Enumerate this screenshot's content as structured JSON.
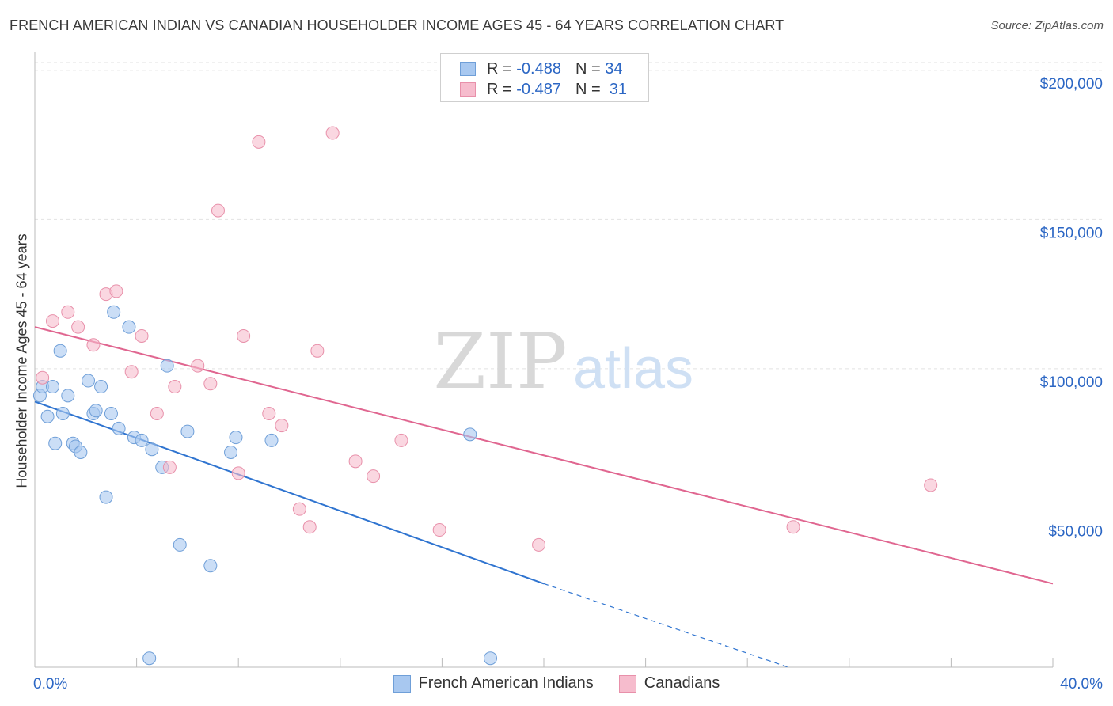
{
  "title": "FRENCH AMERICAN INDIAN VS CANADIAN HOUSEHOLDER INCOME AGES 45 - 64 YEARS CORRELATION CHART",
  "source": "Source: ZipAtlas.com",
  "watermark": {
    "zip": "ZIP",
    "atlas": "atlas"
  },
  "legend": {
    "rows": [
      {
        "r_label": "R =",
        "r_value": "-0.488",
        "n_label": "N =",
        "n_value": "34"
      },
      {
        "r_label": "R =",
        "r_value": "-0.487",
        "n_label": "N =",
        "n_value": "31"
      }
    ]
  },
  "colors": {
    "blue": "#a8c8f0",
    "blue_stroke": "#6f9fd8",
    "blue_line": "#2f74d0",
    "pink": "#f6bccd",
    "pink_stroke": "#e890aa",
    "pink_line": "#e06690",
    "axis_text": "#2b66c4"
  },
  "chart_data": {
    "type": "scatter",
    "title": "FRENCH AMERICAN INDIAN VS CANADIAN HOUSEHOLDER INCOME AGES 45 - 64 YEARS CORRELATION CHART",
    "xlabel": "",
    "ylabel": "Householder Income Ages 45 - 64 years",
    "xlim": [
      0,
      40
    ],
    "ylim": [
      0,
      205000
    ],
    "x_tick_labels": [
      "0.0%",
      "40.0%"
    ],
    "y_ticks": [
      50000,
      100000,
      150000,
      200000
    ],
    "y_tick_labels": [
      "$50,000",
      "$100,000",
      "$150,000",
      "$200,000"
    ],
    "grid": true,
    "legend_position": "top-center",
    "series": [
      {
        "name": "French American Indians",
        "color": "#a8c8f0",
        "points": [
          [
            0.2,
            91000
          ],
          [
            0.3,
            94000
          ],
          [
            0.5,
            84000
          ],
          [
            0.7,
            94000
          ],
          [
            0.8,
            75000
          ],
          [
            1.0,
            106000
          ],
          [
            1.1,
            85000
          ],
          [
            1.3,
            91000
          ],
          [
            1.5,
            75000
          ],
          [
            1.6,
            74000
          ],
          [
            1.8,
            72000
          ],
          [
            2.1,
            96000
          ],
          [
            2.3,
            85000
          ],
          [
            2.4,
            86000
          ],
          [
            2.6,
            94000
          ],
          [
            2.8,
            57000
          ],
          [
            3.0,
            85000
          ],
          [
            3.1,
            119000
          ],
          [
            3.3,
            80000
          ],
          [
            3.7,
            114000
          ],
          [
            3.9,
            77000
          ],
          [
            4.2,
            76000
          ],
          [
            4.5,
            3000
          ],
          [
            4.6,
            73000
          ],
          [
            5.0,
            67000
          ],
          [
            5.2,
            101000
          ],
          [
            5.7,
            41000
          ],
          [
            6.0,
            79000
          ],
          [
            6.9,
            34000
          ],
          [
            7.7,
            72000
          ],
          [
            7.9,
            77000
          ],
          [
            9.3,
            76000
          ],
          [
            17.1,
            78000
          ],
          [
            17.9,
            3000
          ]
        ],
        "trend": {
          "x0": 0,
          "y0": 89000,
          "x1": 20,
          "y1": 28000,
          "dashed_to_x": 29.6,
          "dashed_to_y": 0
        }
      },
      {
        "name": "Canadians",
        "color": "#f6bccd",
        "points": [
          [
            0.3,
            97000
          ],
          [
            0.7,
            116000
          ],
          [
            1.3,
            119000
          ],
          [
            1.7,
            114000
          ],
          [
            2.3,
            108000
          ],
          [
            2.8,
            125000
          ],
          [
            3.2,
            126000
          ],
          [
            3.8,
            99000
          ],
          [
            4.2,
            111000
          ],
          [
            4.8,
            85000
          ],
          [
            5.5,
            94000
          ],
          [
            5.3,
            67000
          ],
          [
            6.4,
            101000
          ],
          [
            6.9,
            95000
          ],
          [
            7.2,
            153000
          ],
          [
            8.0,
            65000
          ],
          [
            8.2,
            111000
          ],
          [
            8.8,
            176000
          ],
          [
            9.2,
            85000
          ],
          [
            9.7,
            81000
          ],
          [
            10.4,
            53000
          ],
          [
            10.8,
            47000
          ],
          [
            11.1,
            106000
          ],
          [
            11.7,
            179000
          ],
          [
            12.6,
            69000
          ],
          [
            13.3,
            64000
          ],
          [
            14.4,
            76000
          ],
          [
            15.9,
            46000
          ],
          [
            19.8,
            41000
          ],
          [
            29.8,
            47000
          ],
          [
            35.2,
            61000
          ]
        ],
        "trend": {
          "x0": 0,
          "y0": 114000,
          "x1": 40,
          "y1": 28000
        }
      }
    ]
  }
}
